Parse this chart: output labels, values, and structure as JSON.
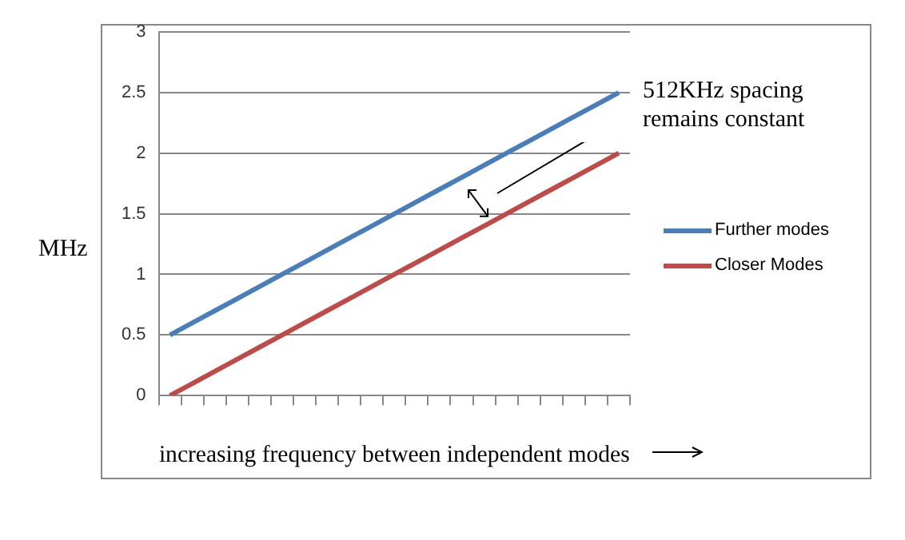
{
  "chart_data": {
    "type": "line",
    "xlabel": "increasing frequency between independent modes",
    "ylabel": "MHz",
    "categories": [
      null,
      null,
      null,
      null,
      null,
      null,
      null,
      null,
      null,
      null,
      null,
      null,
      null,
      null,
      null,
      null,
      null,
      null,
      null,
      null,
      null
    ],
    "series": [
      {
        "name": "Further modes",
        "color": "#4a7ebb",
        "values": [
          0.5,
          0.6,
          0.7,
          0.8,
          0.9,
          1.0,
          1.1,
          1.2,
          1.3,
          1.4,
          1.5,
          1.6,
          1.7,
          1.8,
          1.9,
          2.0,
          2.1,
          2.2,
          2.3,
          2.4,
          2.5
        ]
      },
      {
        "name": "Closer Modes",
        "color": "#be4b48",
        "values": [
          0.0,
          0.1,
          0.2,
          0.3,
          0.4,
          0.5,
          0.6,
          0.7,
          0.8,
          0.9,
          1.0,
          1.1,
          1.2,
          1.3,
          1.4,
          1.5,
          1.6,
          1.7,
          1.8,
          1.9,
          2.0
        ]
      }
    ],
    "ylim": [
      0,
      3
    ],
    "yticks": [
      0,
      0.5,
      1,
      1.5,
      2,
      2.5,
      3
    ],
    "grid": "y",
    "legend": "right",
    "marker": "none",
    "line_style": "solid",
    "annotations": [
      "512KHz spacing\nremains constant"
    ]
  }
}
